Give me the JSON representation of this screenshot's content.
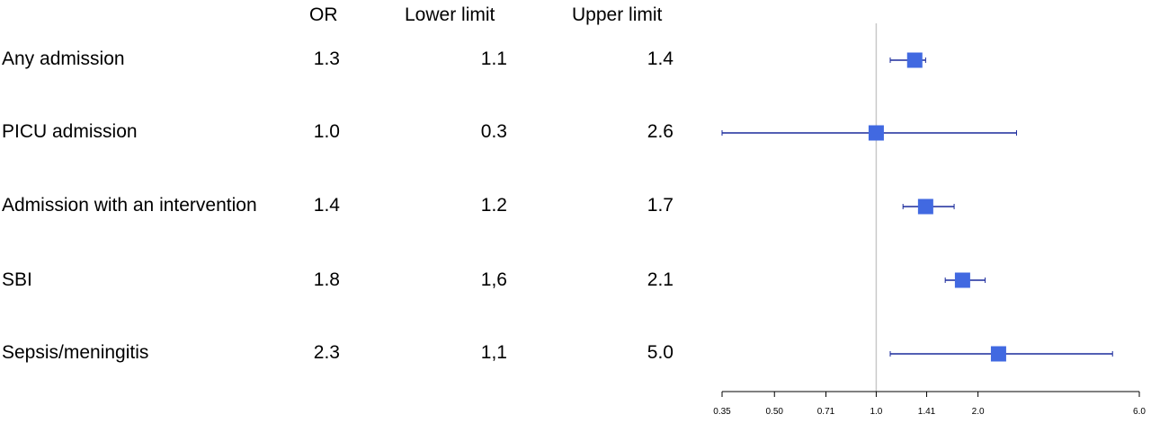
{
  "columns": {
    "or": "OR",
    "lower": "Lower limit",
    "upper": "Upper limit"
  },
  "rows": [
    {
      "label": "Any admission",
      "or": "1.3",
      "lower": "1.1",
      "upper": "1.4"
    },
    {
      "label": "PICU admission",
      "or": "1.0",
      "lower": "0.3",
      "upper": "2.6"
    },
    {
      "label": "Admission with an intervention",
      "or": "1.4",
      "lower": "1.2",
      "upper": "1.7"
    },
    {
      "label": "SBI",
      "or": "1.8",
      "lower": "1,6",
      "upper": "2.1"
    },
    {
      "label": "Sepsis/meningitis",
      "or": "2.3",
      "lower": "1,1",
      "upper": "5.0"
    }
  ],
  "chart_data": {
    "type": "scatter",
    "subtype": "forest-plot",
    "x_scale": "log",
    "xlim": [
      0.35,
      6.0
    ],
    "reference_line": 1.0,
    "x_ticks": [
      0.35,
      0.5,
      0.71,
      1.0,
      1.41,
      2.0,
      6.0
    ],
    "x_tick_labels": [
      "0.35",
      "0.50",
      "0.71",
      "1.0",
      "1.41",
      "2.0",
      "6.0"
    ],
    "categories": [
      "Any admission",
      "PICU admission",
      "Admission with an intervention",
      "SBI",
      "Sepsis/meningitis"
    ],
    "points": [
      {
        "or": 1.3,
        "lower": 1.1,
        "upper": 1.4
      },
      {
        "or": 1.0,
        "lower": 0.35,
        "upper": 2.6
      },
      {
        "or": 1.4,
        "lower": 1.2,
        "upper": 1.7
      },
      {
        "or": 1.8,
        "lower": 1.6,
        "upper": 2.1
      },
      {
        "or": 2.3,
        "lower": 1.1,
        "upper": 5.0
      }
    ],
    "colors": {
      "marker": "#4169e1",
      "ci_line": "#1a2a9c",
      "reference": "#c8c8c8",
      "axis": "#000000"
    }
  }
}
